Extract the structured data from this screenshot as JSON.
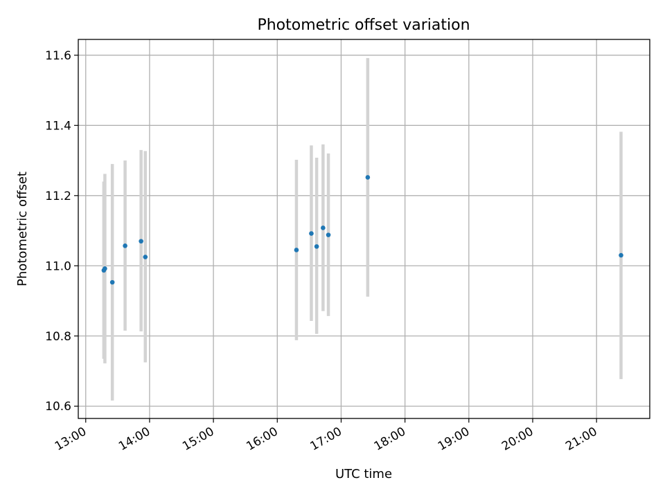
{
  "chart_data": {
    "type": "scatter",
    "title": "Photometric offset variation",
    "xlabel": "UTC time",
    "ylabel": "Photometric offset",
    "x_type": "time",
    "xlim": [
      "12:53",
      "21:50"
    ],
    "ylim": [
      10.565,
      11.645
    ],
    "x_ticks": [
      "13:00",
      "14:00",
      "15:00",
      "16:00",
      "17:00",
      "18:00",
      "19:00",
      "20:00",
      "21:00"
    ],
    "y_ticks": [
      "10.6",
      "10.8",
      "11.0",
      "11.2",
      "11.4",
      "11.6"
    ],
    "grid": true,
    "legend": "none",
    "colors": {
      "marker": "#1f77b4",
      "errorbar": "#d3d3d3"
    },
    "points": [
      {
        "x": "13:17",
        "y": 10.987,
        "ylow": 10.735,
        "yhigh": 11.24
      },
      {
        "x": "13:18",
        "y": 10.992,
        "ylow": 10.722,
        "yhigh": 11.262
      },
      {
        "x": "13:25",
        "y": 10.953,
        "ylow": 10.616,
        "yhigh": 11.29
      },
      {
        "x": "13:37",
        "y": 11.057,
        "ylow": 10.815,
        "yhigh": 11.3
      },
      {
        "x": "13:52",
        "y": 11.07,
        "ylow": 10.813,
        "yhigh": 11.33
      },
      {
        "x": "13:56",
        "y": 11.025,
        "ylow": 10.725,
        "yhigh": 11.327
      },
      {
        "x": "16:18",
        "y": 11.045,
        "ylow": 10.788,
        "yhigh": 11.302
      },
      {
        "x": "16:32",
        "y": 11.092,
        "ylow": 10.843,
        "yhigh": 11.343
      },
      {
        "x": "16:37",
        "y": 11.055,
        "ylow": 10.806,
        "yhigh": 11.308
      },
      {
        "x": "16:43",
        "y": 11.108,
        "ylow": 10.871,
        "yhigh": 11.346
      },
      {
        "x": "16:48",
        "y": 11.088,
        "ylow": 10.857,
        "yhigh": 11.32
      },
      {
        "x": "17:25",
        "y": 11.252,
        "ylow": 10.912,
        "yhigh": 11.592
      },
      {
        "x": "21:23",
        "y": 11.03,
        "ylow": 10.677,
        "yhigh": 11.382
      }
    ]
  }
}
